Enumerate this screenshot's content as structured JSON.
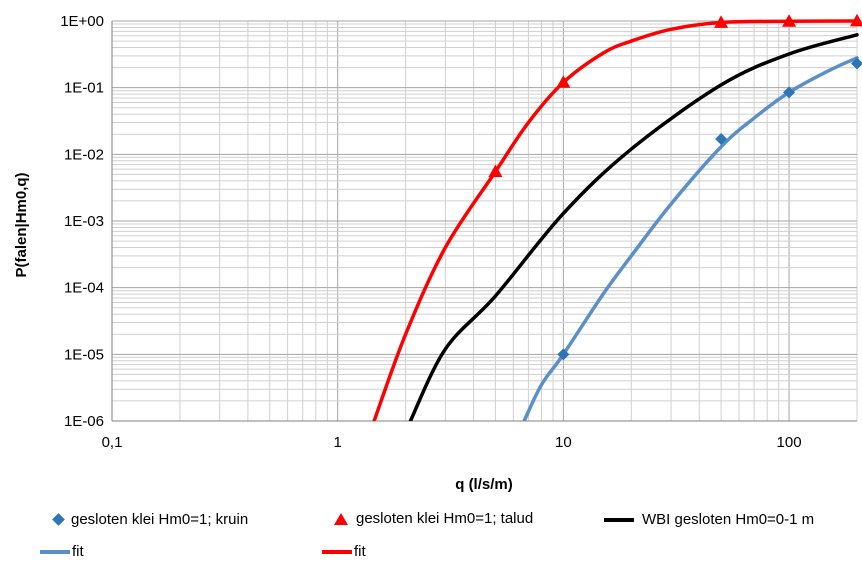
{
  "chart_data": {
    "type": "scatter",
    "xscale": "log",
    "yscale": "log",
    "xlim": [
      0.1,
      200
    ],
    "ylim": [
      1e-06,
      1
    ],
    "xlabel": "q (l/s/m)",
    "ylabel": "P(falen|Hm0,q)",
    "x_tick_values": [
      0.1,
      1,
      10,
      100
    ],
    "x_tick_labels": [
      "0,1",
      "1",
      "10",
      "100"
    ],
    "y_tick_values": [
      1e-06,
      1e-05,
      0.0001,
      0.001,
      0.01,
      0.1,
      1
    ],
    "y_tick_labels": [
      "1E-06",
      "1E-05",
      "1E-04",
      "1E-03",
      "1E-02",
      "1E-01",
      "1E+00"
    ],
    "grid": true,
    "legend_position": "bottom",
    "series": [
      {
        "name": "gesloten klei Hm0=1; kruin",
        "kind": "marker",
        "marker": "diamond",
        "color": "#2E75B6",
        "points": [
          [
            10,
            1e-05
          ],
          [
            50,
            0.017
          ],
          [
            100,
            0.085
          ],
          [
            200,
            0.23
          ]
        ]
      },
      {
        "name": "gesloten klei Hm0=1; talud",
        "kind": "marker",
        "marker": "triangle",
        "color": "#FF0000",
        "points": [
          [
            5,
            0.0055
          ],
          [
            10,
            0.12
          ],
          [
            50,
            0.95
          ],
          [
            100,
            0.99
          ],
          [
            200,
            1.0
          ]
        ]
      },
      {
        "name": "WBI gesloten Hm0=0-1 m",
        "kind": "line",
        "color": "#000000",
        "points": [
          [
            2.1,
            1e-06
          ],
          [
            3,
            1.2e-05
          ],
          [
            5,
            7.5e-05
          ],
          [
            10,
            0.0013
          ],
          [
            20,
            0.012
          ],
          [
            50,
            0.11
          ],
          [
            100,
            0.32
          ],
          [
            200,
            0.62
          ]
        ]
      },
      {
        "name": "fit",
        "kind": "line",
        "color": "#5B8FC9",
        "points": [
          [
            6.7,
            1e-06
          ],
          [
            8,
            3.5e-06
          ],
          [
            10,
            1e-05
          ],
          [
            15,
            8e-05
          ],
          [
            20,
            0.0003
          ],
          [
            30,
            0.0018
          ],
          [
            50,
            0.013
          ],
          [
            70,
            0.035
          ],
          [
            100,
            0.085
          ],
          [
            150,
            0.18
          ],
          [
            200,
            0.28
          ]
        ]
      },
      {
        "name": "fit",
        "kind": "line",
        "color": "#FF0000",
        "points": [
          [
            1.45,
            1e-06
          ],
          [
            2,
            2e-05
          ],
          [
            3,
            0.0004
          ],
          [
            5,
            0.0055
          ],
          [
            7,
            0.03
          ],
          [
            10,
            0.12
          ],
          [
            15,
            0.33
          ],
          [
            20,
            0.5
          ],
          [
            30,
            0.75
          ],
          [
            50,
            0.95
          ],
          [
            100,
            0.99
          ],
          [
            200,
            1.0
          ]
        ]
      }
    ]
  }
}
